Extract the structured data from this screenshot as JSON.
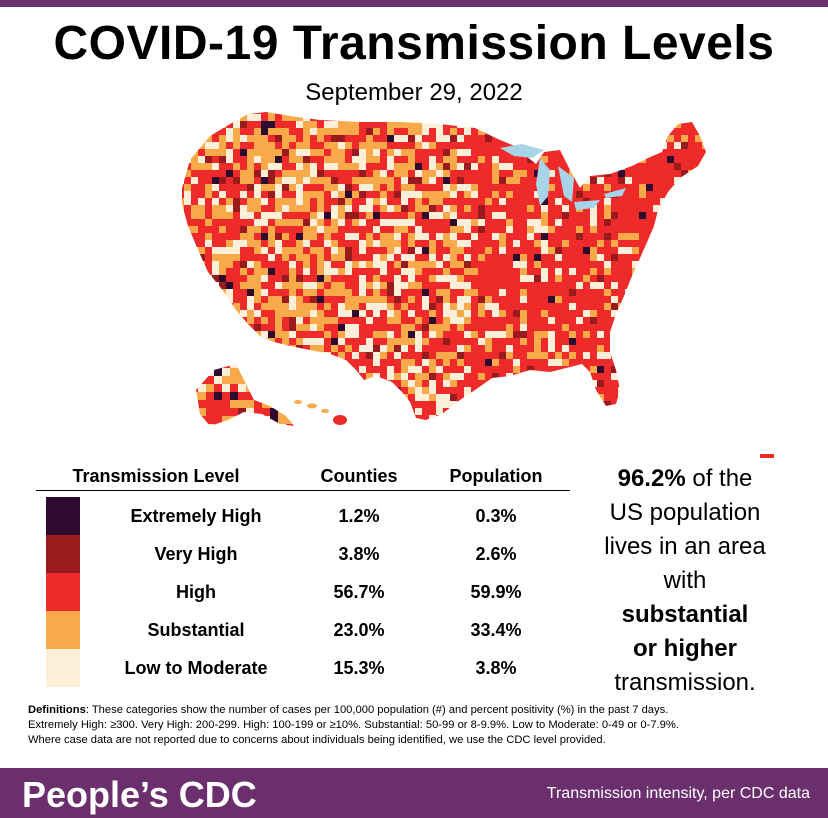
{
  "title": "COVID-19 Transmission Levels",
  "date": "September 29, 2022",
  "colors": {
    "brand_purple": "#6b2f6e",
    "water": "#a8d4e8",
    "extremely_high": "#2d0a2e",
    "very_high": "#9a1b1e",
    "high": "#ee2a2a",
    "substantial": "#f8aa4a",
    "low_to_moderate": "#fdefd8"
  },
  "map": {
    "regions": [
      "Contiguous United States",
      "Alaska",
      "Hawaii",
      "Puerto Rico"
    ]
  },
  "table": {
    "headers": [
      "Transmission Level",
      "Counties",
      "Population"
    ],
    "rows": [
      {
        "level": "Extremely High",
        "counties": "1.2%",
        "population": "0.3%",
        "color": "#2d0a2e"
      },
      {
        "level": "Very High",
        "counties": "3.8%",
        "population": "2.6%",
        "color": "#9a1b1e"
      },
      {
        "level": "High",
        "counties": "56.7%",
        "population": "59.9%",
        "color": "#ee2a2a"
      },
      {
        "level": "Substantial",
        "counties": "23.0%",
        "population": "33.4%",
        "color": "#f8aa4a"
      },
      {
        "level": "Low to Moderate",
        "counties": "15.3%",
        "population": "3.8%",
        "color": "#fdefd8"
      }
    ]
  },
  "summary": {
    "pct": "96.2%",
    "line1": "of the",
    "line2": "US population",
    "line3": "lives in an area",
    "line4": "with",
    "bold1": "substantial",
    "bold2": "or higher",
    "line5": "transmission."
  },
  "definitions": {
    "label": "Definitions",
    "line1": ": These categories show the number of cases per 100,000 population (#) and percent positivity (%) in the past 7 days.",
    "line2": "Extremely High: ≥300. Very High: 200-299. High: 100-199 or ≥10%. Substantial: 50-99 or 8-9.9%. Low to Moderate: 0-49 or 0-7.9%.",
    "line3": "Where case data are not reported due to concerns about individuals being identified, we use the CDC level provided."
  },
  "footer": {
    "brand": "People’s CDC",
    "tagline": "Transmission intensity, per CDC data"
  }
}
